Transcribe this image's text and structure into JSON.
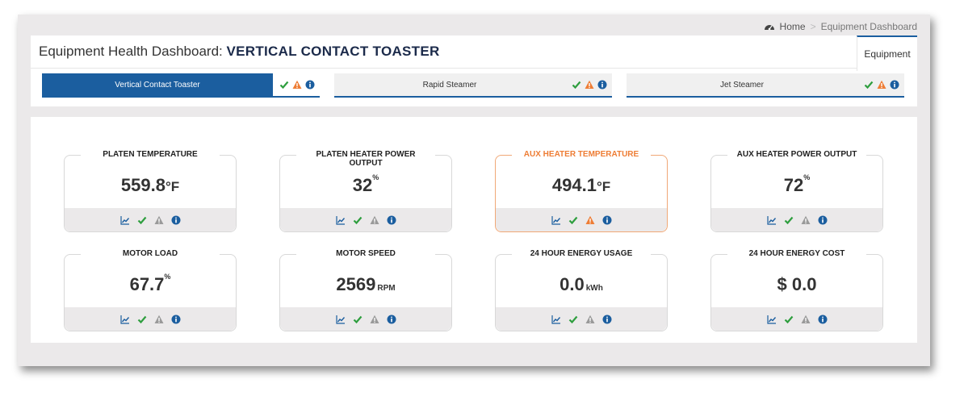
{
  "breadcrumb": {
    "home": "Home",
    "separator": ">",
    "current": "Equipment Dashboard"
  },
  "header": {
    "title_prefix": "Equipment Health Dashboard:",
    "title_name": "VERTICAL CONTACT TOASTER",
    "equipment_tab": "Equipment"
  },
  "tabs": [
    {
      "label": "Vertical Contact Toaster",
      "active": true
    },
    {
      "label": "Rapid Steamer",
      "active": false
    },
    {
      "label": "Jet Steamer",
      "active": false
    }
  ],
  "tiles": [
    {
      "title": "PLATEN TEMPERATURE",
      "value": "559.8",
      "unit": "°F",
      "warn": false
    },
    {
      "title": "PLATEN HEATER POWER OUTPUT",
      "value": "32",
      "unit": "%",
      "warn": false
    },
    {
      "title": "AUX HEATER TEMPERATURE",
      "value": "494.1",
      "unit": "°F",
      "warn": true
    },
    {
      "title": "AUX HEATER POWER OUTPUT",
      "value": "72",
      "unit": "%",
      "warn": false
    },
    {
      "title": "MOTOR LOAD",
      "value": "67.7",
      "unit": "%",
      "warn": false
    },
    {
      "title": "MOTOR SPEED",
      "value": "2569",
      "unit": "RPM",
      "warn": false
    },
    {
      "title": "24 HOUR ENERGY USAGE",
      "value": "0.0",
      "unit": "kWh",
      "warn": false
    },
    {
      "title": "24 HOUR ENERGY COST",
      "value": "$ 0.0",
      "unit": "",
      "warn": false
    }
  ],
  "icons": {
    "trend": "line-chart-icon",
    "ok": "check-icon",
    "warning": "warning-icon",
    "info": "info-icon"
  },
  "colors": {
    "primary": "#1b5e9f",
    "ok": "#2e9e3e",
    "warn": "#ee7d35",
    "muted": "#9a9a9a",
    "title": "#1b2a4a"
  }
}
